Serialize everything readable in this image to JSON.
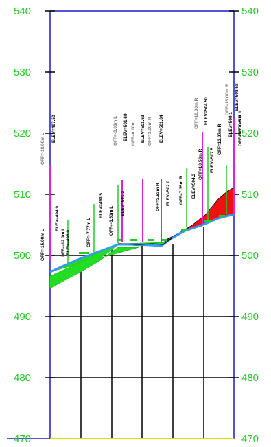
{
  "section_view": {
    "elevation_axis": {
      "ticks": [
        "540",
        "530",
        "520",
        "510",
        "500",
        "490",
        "480",
        "470"
      ],
      "values": [
        540,
        530,
        520,
        510,
        500,
        490,
        480,
        470
      ],
      "label_color": "#22cc22"
    },
    "colors": {
      "frame": "#1a1acc",
      "grid": "#000000",
      "existing_ground": "#3399ff",
      "fill_area": "#22dd22",
      "cut_area": "#ee1111",
      "marker_line": "#dd22dd",
      "green_marker": "#22cc22",
      "baseline": "#dddd00"
    },
    "annotations": [
      {
        "offset": "OFF=-18.00m L",
        "elev": "ELEV=497.50"
      },
      {
        "offset": "OFF=-15.00m L",
        "elev": "ELEV=494.9"
      },
      {
        "offset": "OFF=-12.0m L",
        "elev": "ELEV=496.0"
      },
      {
        "offset": "OFF=-7.77m L",
        "elev": "ELEV=498.5"
      },
      {
        "offset": "OFF=-3.50m L",
        "elev": "ELEV=501.2"
      },
      {
        "offset": "OFF=-3.00m L",
        "elev": "ELEV=501.69"
      },
      {
        "offset": "OFF=0.00m",
        "elev": "ELEV=501.63"
      },
      {
        "offset": "OFF=3.00m R",
        "elev": "ELEV=501.84"
      },
      {
        "offset": "OFF=3.53m R",
        "elev": "ELEV=502.0"
      },
      {
        "offset": "OFF=7.35m R",
        "elev": "ELEV=504.3"
      },
      {
        "offset": "OFF=10.00m R",
        "elev": "ELEV=504.50"
      },
      {
        "offset": "OFF=10.58m R",
        "elev": "ELEV=507.5"
      },
      {
        "offset": "OFF=12.97m R",
        "elev": "ELEV=509.1"
      },
      {
        "offset": "OFF=15.00m R",
        "elev": "ELEV=508.58"
      },
      {
        "offset": "OFF=18.00m R",
        "elev": "ELEV=511.1"
      }
    ]
  }
}
